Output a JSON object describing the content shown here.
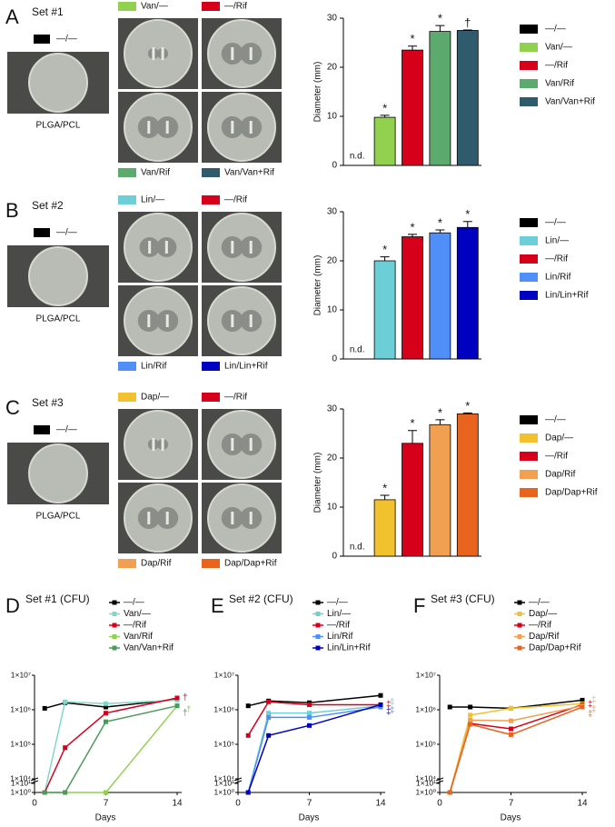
{
  "panel_labels": [
    "A",
    "B",
    "C",
    "D",
    "E",
    "F"
  ],
  "plate_sets": [
    {
      "title": "Set #1",
      "caption": "PLGA/PCL"
    },
    {
      "title": "Set #2",
      "caption": "PLGA/PCL"
    },
    {
      "title": "Set #3",
      "caption": "PLGA/PCL"
    }
  ],
  "chart_data": [
    {
      "type": "bar",
      "ylabel": "Diameter (mm)",
      "categories": [
        "—/—",
        "Van/—",
        "—/Rif",
        "Van/Rif",
        "Van/Van+Rif"
      ],
      "colors": [
        "#000000",
        "#92d050",
        "#d7001a",
        "#5daa6e",
        "#2f5b6d"
      ],
      "values": [
        null,
        9.8,
        23.5,
        27.3,
        27.5
      ],
      "errors": [
        null,
        0.4,
        0.8,
        1.2,
        0.1
      ],
      "annotations": [
        "n.d.",
        "*",
        "*",
        "*",
        "†"
      ],
      "ylim": [
        0,
        30
      ],
      "yticks": [
        0,
        10,
        20,
        30
      ]
    },
    {
      "type": "bar",
      "ylabel": "Diameter (mm)",
      "categories": [
        "—/—",
        "Lin/—",
        "—/Rif",
        "Lin/Rif",
        "Lin/Lin+Rif"
      ],
      "colors": [
        "#000000",
        "#6ccfd8",
        "#d7001a",
        "#4f8ff7",
        "#0000c0"
      ],
      "values": [
        null,
        20,
        24.9,
        25.7,
        26.8
      ],
      "errors": [
        null,
        0.8,
        0.5,
        0.6,
        1.2
      ],
      "annotations": [
        "n.d.",
        "*",
        "*",
        "*",
        "*"
      ],
      "ylim": [
        0,
        30
      ],
      "yticks": [
        0,
        10,
        20,
        30
      ]
    },
    {
      "type": "bar",
      "ylabel": "Diameter (mm)",
      "categories": [
        "—/—",
        "Dap/—",
        "—/Rif",
        "Dap/Rif",
        "Dap/Dap+Rif"
      ],
      "colors": [
        "#000000",
        "#f2c12e",
        "#d7001a",
        "#f0a050",
        "#e8641e"
      ],
      "values": [
        null,
        11.5,
        23,
        26.8,
        29
      ],
      "errors": [
        null,
        0.9,
        2.6,
        1.0,
        0.2
      ],
      "annotations": [
        "n.d.",
        "*",
        "*",
        "*",
        "*"
      ],
      "ylim": [
        0,
        30
      ],
      "yticks": [
        0,
        10,
        20,
        30
      ]
    },
    {
      "type": "line",
      "title": "Set #1 (CFU)",
      "xlabel": "Days",
      "x": [
        1,
        3,
        7,
        14
      ],
      "xlim": [
        0,
        14
      ],
      "xticks": [
        0,
        7,
        14
      ],
      "ylim": [
        1,
        10000000
      ],
      "log_scale": true,
      "axis_break": [
        10,
        10000
      ],
      "yticks": [
        {
          "value": 1,
          "label": "1×10⁰"
        },
        {
          "value": 10,
          "label": "1×10¹"
        },
        {
          "value": 10000,
          "label": "1×10⁴"
        },
        {
          "value": 100000,
          "label": "1×10⁵"
        },
        {
          "value": 1000000,
          "label": "1×10⁶"
        },
        {
          "value": 10000000,
          "label": "1×10⁷"
        }
      ],
      "series": [
        {
          "name": "—/—",
          "color": "#000000",
          "values": [
            1100000,
            1600000,
            1200000,
            2000000
          ]
        },
        {
          "name": "Van/—",
          "color": "#7fd8c8",
          "values": [
            1,
            1700000,
            1500000,
            1900000
          ]
        },
        {
          "name": "—/Rif",
          "color": "#d7001a",
          "values": [
            1,
            80000,
            800000,
            2200000
          ],
          "end_label": "†"
        },
        {
          "name": "Van/Rif",
          "color": "#92d050",
          "values": [
            1,
            1,
            1,
            1300000
          ],
          "end_label": "†"
        },
        {
          "name": "Van/Van+Rif",
          "color": "#4a9a5a",
          "values": [
            1,
            1,
            450000,
            1300000
          ],
          "end_label": "†"
        }
      ]
    },
    {
      "type": "line",
      "title": "Set #2 (CFU)",
      "xlabel": "Days",
      "x": [
        1,
        3,
        7,
        14
      ],
      "xlim": [
        0,
        14
      ],
      "xticks": [
        0,
        7,
        14
      ],
      "ylim": [
        1,
        10000000
      ],
      "log_scale": true,
      "axis_break": [
        10,
        10000
      ],
      "yticks": [
        {
          "value": 1,
          "label": "1×10⁰"
        },
        {
          "value": 10,
          "label": "1×10¹"
        },
        {
          "value": 10000,
          "label": "1×10⁴"
        },
        {
          "value": 100000,
          "label": "1×10⁵"
        },
        {
          "value": 1000000,
          "label": "1×10⁶"
        },
        {
          "value": 10000000,
          "label": "1×10⁷"
        }
      ],
      "series": [
        {
          "name": "—/—",
          "color": "#000000",
          "values": [
            1300000,
            1800000,
            1600000,
            2600000
          ]
        },
        {
          "name": "Lin/—",
          "color": "#6ccfd8",
          "values": [
            1,
            800000,
            800000,
            1300000
          ],
          "end_label": "‡"
        },
        {
          "name": "—/Rif",
          "color": "#d7001a",
          "values": [
            180000,
            1700000,
            1400000,
            1400000
          ],
          "end_label": "‡"
        },
        {
          "name": "Lin/Rif",
          "color": "#4f8ff7",
          "values": [
            1,
            600000,
            600000,
            1200000
          ],
          "end_label": "‡"
        },
        {
          "name": "Lin/Lin+Rif",
          "color": "#0000c0",
          "values": [
            1,
            180000,
            350000,
            1400000
          ],
          "end_label": "‡"
        }
      ]
    },
    {
      "type": "line",
      "title": "Set #3 (CFU)",
      "xlabel": "Days",
      "x": [
        1,
        3,
        7,
        14
      ],
      "xlim": [
        0,
        14
      ],
      "xticks": [
        0,
        7,
        14
      ],
      "ylim": [
        1,
        10000000
      ],
      "log_scale": true,
      "axis_break": [
        10,
        10000
      ],
      "yticks": [
        {
          "value": 1,
          "label": "1×10⁰"
        },
        {
          "value": 10,
          "label": "1×10¹"
        },
        {
          "value": 10000,
          "label": "1×10⁴"
        },
        {
          "value": 100000,
          "label": "1×10⁵"
        },
        {
          "value": 1000000,
          "label": "1×10⁶"
        },
        {
          "value": 10000000,
          "label": "1×10⁷"
        }
      ],
      "series": [
        {
          "name": "—/—",
          "color": "#000000",
          "values": [
            1200000,
            1200000,
            1100000,
            1900000
          ]
        },
        {
          "name": "Dap/—",
          "color": "#f2c12e",
          "values": [
            1,
            700000,
            1100000,
            1500000
          ],
          "end_label": "‡"
        },
        {
          "name": "—/Rif",
          "color": "#d7001a",
          "values": [
            1,
            400000,
            280000,
            1400000
          ],
          "end_label": "‡"
        },
        {
          "name": "Dap/Rif",
          "color": "#f0a050",
          "values": [
            1,
            500000,
            480000,
            1300000
          ],
          "end_label": "‡"
        },
        {
          "name": "Dap/Dap+Rif",
          "color": "#e8641e",
          "values": [
            1,
            380000,
            190000,
            1200000
          ],
          "end_label": "‡"
        }
      ]
    }
  ]
}
